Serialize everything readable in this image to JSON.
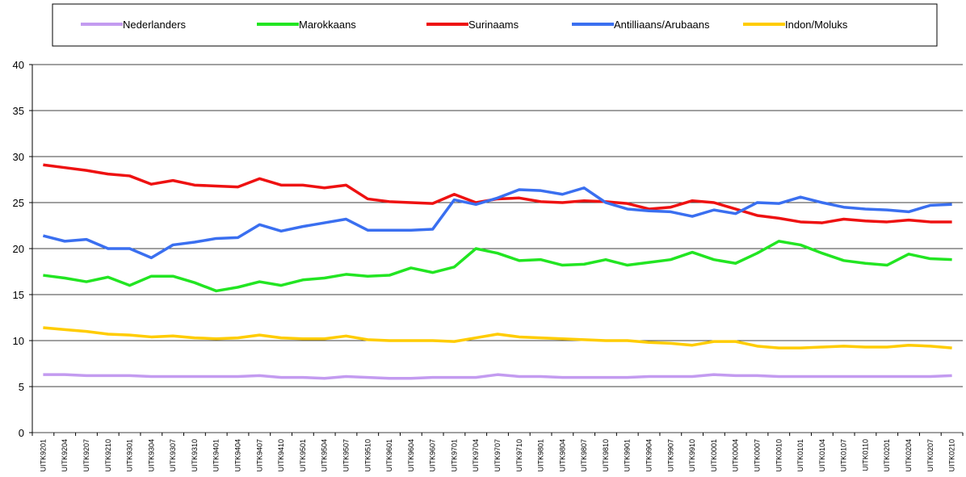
{
  "chart_data": {
    "type": "line",
    "categories": [
      "UITK9201",
      "UITK9204",
      "UITK9207",
      "UITK9210",
      "UITK9301",
      "UITK9304",
      "UITK9307",
      "UITK9310",
      "UITK9401",
      "UITK9404",
      "UITK9407",
      "UITK9410",
      "UITK9501",
      "UITK9504",
      "UITK9507",
      "UITK9510",
      "UITK9601",
      "UITK9604",
      "UITK9607",
      "UITK9701",
      "UITK9704",
      "UITK9707",
      "UITK9710",
      "UITK9801",
      "UITK9804",
      "UITK9807",
      "UITK9810",
      "UITK9901",
      "UITK9904",
      "UITK9907",
      "UITK9910",
      "UITK0001",
      "UITK0004",
      "UITK0007",
      "UITK0010",
      "UITK0101",
      "UITK0104",
      "UITK0107",
      "UITK0110",
      "UITK0201",
      "UITK0204",
      "UITK0207",
      "UITK0210"
    ],
    "series": [
      {
        "name": "Nederlanders",
        "color": "#c39bf0",
        "values": [
          6.3,
          6.3,
          6.2,
          6.2,
          6.2,
          6.1,
          6.1,
          6.1,
          6.1,
          6.1,
          6.2,
          6.0,
          6.0,
          5.9,
          6.1,
          6.0,
          5.9,
          5.9,
          6.0,
          6.0,
          6.0,
          6.3,
          6.1,
          6.1,
          6.0,
          6.0,
          6.0,
          6.0,
          6.1,
          6.1,
          6.1,
          6.3,
          6.2,
          6.2,
          6.1,
          6.1,
          6.1,
          6.1,
          6.1,
          6.1,
          6.1,
          6.1,
          6.2
        ]
      },
      {
        "name": "Marokkaans",
        "color": "#22e522",
        "values": [
          17.1,
          16.8,
          16.4,
          16.9,
          16.0,
          17.0,
          17.0,
          16.3,
          15.4,
          15.8,
          16.4,
          16.0,
          16.6,
          16.8,
          17.2,
          17.0,
          17.1,
          17.9,
          17.4,
          18.0,
          20.0,
          19.5,
          18.7,
          18.8,
          18.2,
          18.3,
          18.8,
          18.2,
          18.5,
          18.8,
          19.6,
          18.8,
          18.4,
          19.5,
          20.8,
          20.4,
          19.5,
          18.7,
          18.4,
          18.2,
          19.4,
          18.9,
          18.8
        ]
      },
      {
        "name": "Surinaams",
        "color": "#ee1111",
        "values": [
          29.1,
          28.8,
          28.5,
          28.1,
          27.9,
          27.0,
          27.4,
          26.9,
          26.8,
          26.7,
          27.6,
          26.9,
          26.9,
          26.6,
          26.9,
          25.4,
          25.1,
          25.0,
          24.9,
          25.9,
          25.0,
          25.4,
          25.5,
          25.1,
          25.0,
          25.2,
          25.1,
          24.9,
          24.3,
          24.5,
          25.2,
          25.0,
          24.3,
          23.6,
          23.3,
          22.9,
          22.8,
          23.2,
          23.0,
          22.9,
          23.1,
          22.9,
          22.9
        ]
      },
      {
        "name": "Antilliaans/Arubaans",
        "color": "#3a6ff0",
        "values": [
          21.4,
          20.8,
          21.0,
          20.0,
          20.0,
          19.0,
          20.4,
          20.7,
          21.1,
          21.2,
          22.6,
          21.9,
          22.4,
          22.8,
          23.2,
          22.0,
          22.0,
          22.0,
          22.1,
          25.3,
          24.8,
          25.5,
          26.4,
          26.3,
          25.9,
          26.6,
          25.0,
          24.3,
          24.1,
          24.0,
          23.5,
          24.2,
          23.8,
          25.0,
          24.9,
          25.6,
          25.0,
          24.5,
          24.3,
          24.2,
          24.0,
          24.7,
          24.8
        ]
      },
      {
        "name": "Indon/Moluks",
        "color": "#ffcc00",
        "values": [
          11.4,
          11.2,
          11.0,
          10.7,
          10.6,
          10.4,
          10.5,
          10.3,
          10.2,
          10.3,
          10.6,
          10.3,
          10.2,
          10.2,
          10.5,
          10.1,
          10.0,
          10.0,
          10.0,
          9.9,
          10.3,
          10.7,
          10.4,
          10.3,
          10.2,
          10.1,
          10.0,
          10.0,
          9.8,
          9.7,
          9.5,
          9.9,
          9.9,
          9.4,
          9.2,
          9.2,
          9.3,
          9.4,
          9.3,
          9.3,
          9.5,
          9.4,
          9.2
        ]
      }
    ],
    "ylim": [
      0,
      40
    ],
    "yticks": [
      0,
      5,
      10,
      15,
      20,
      25,
      30,
      35,
      40
    ],
    "grid": true,
    "legend": "top"
  }
}
